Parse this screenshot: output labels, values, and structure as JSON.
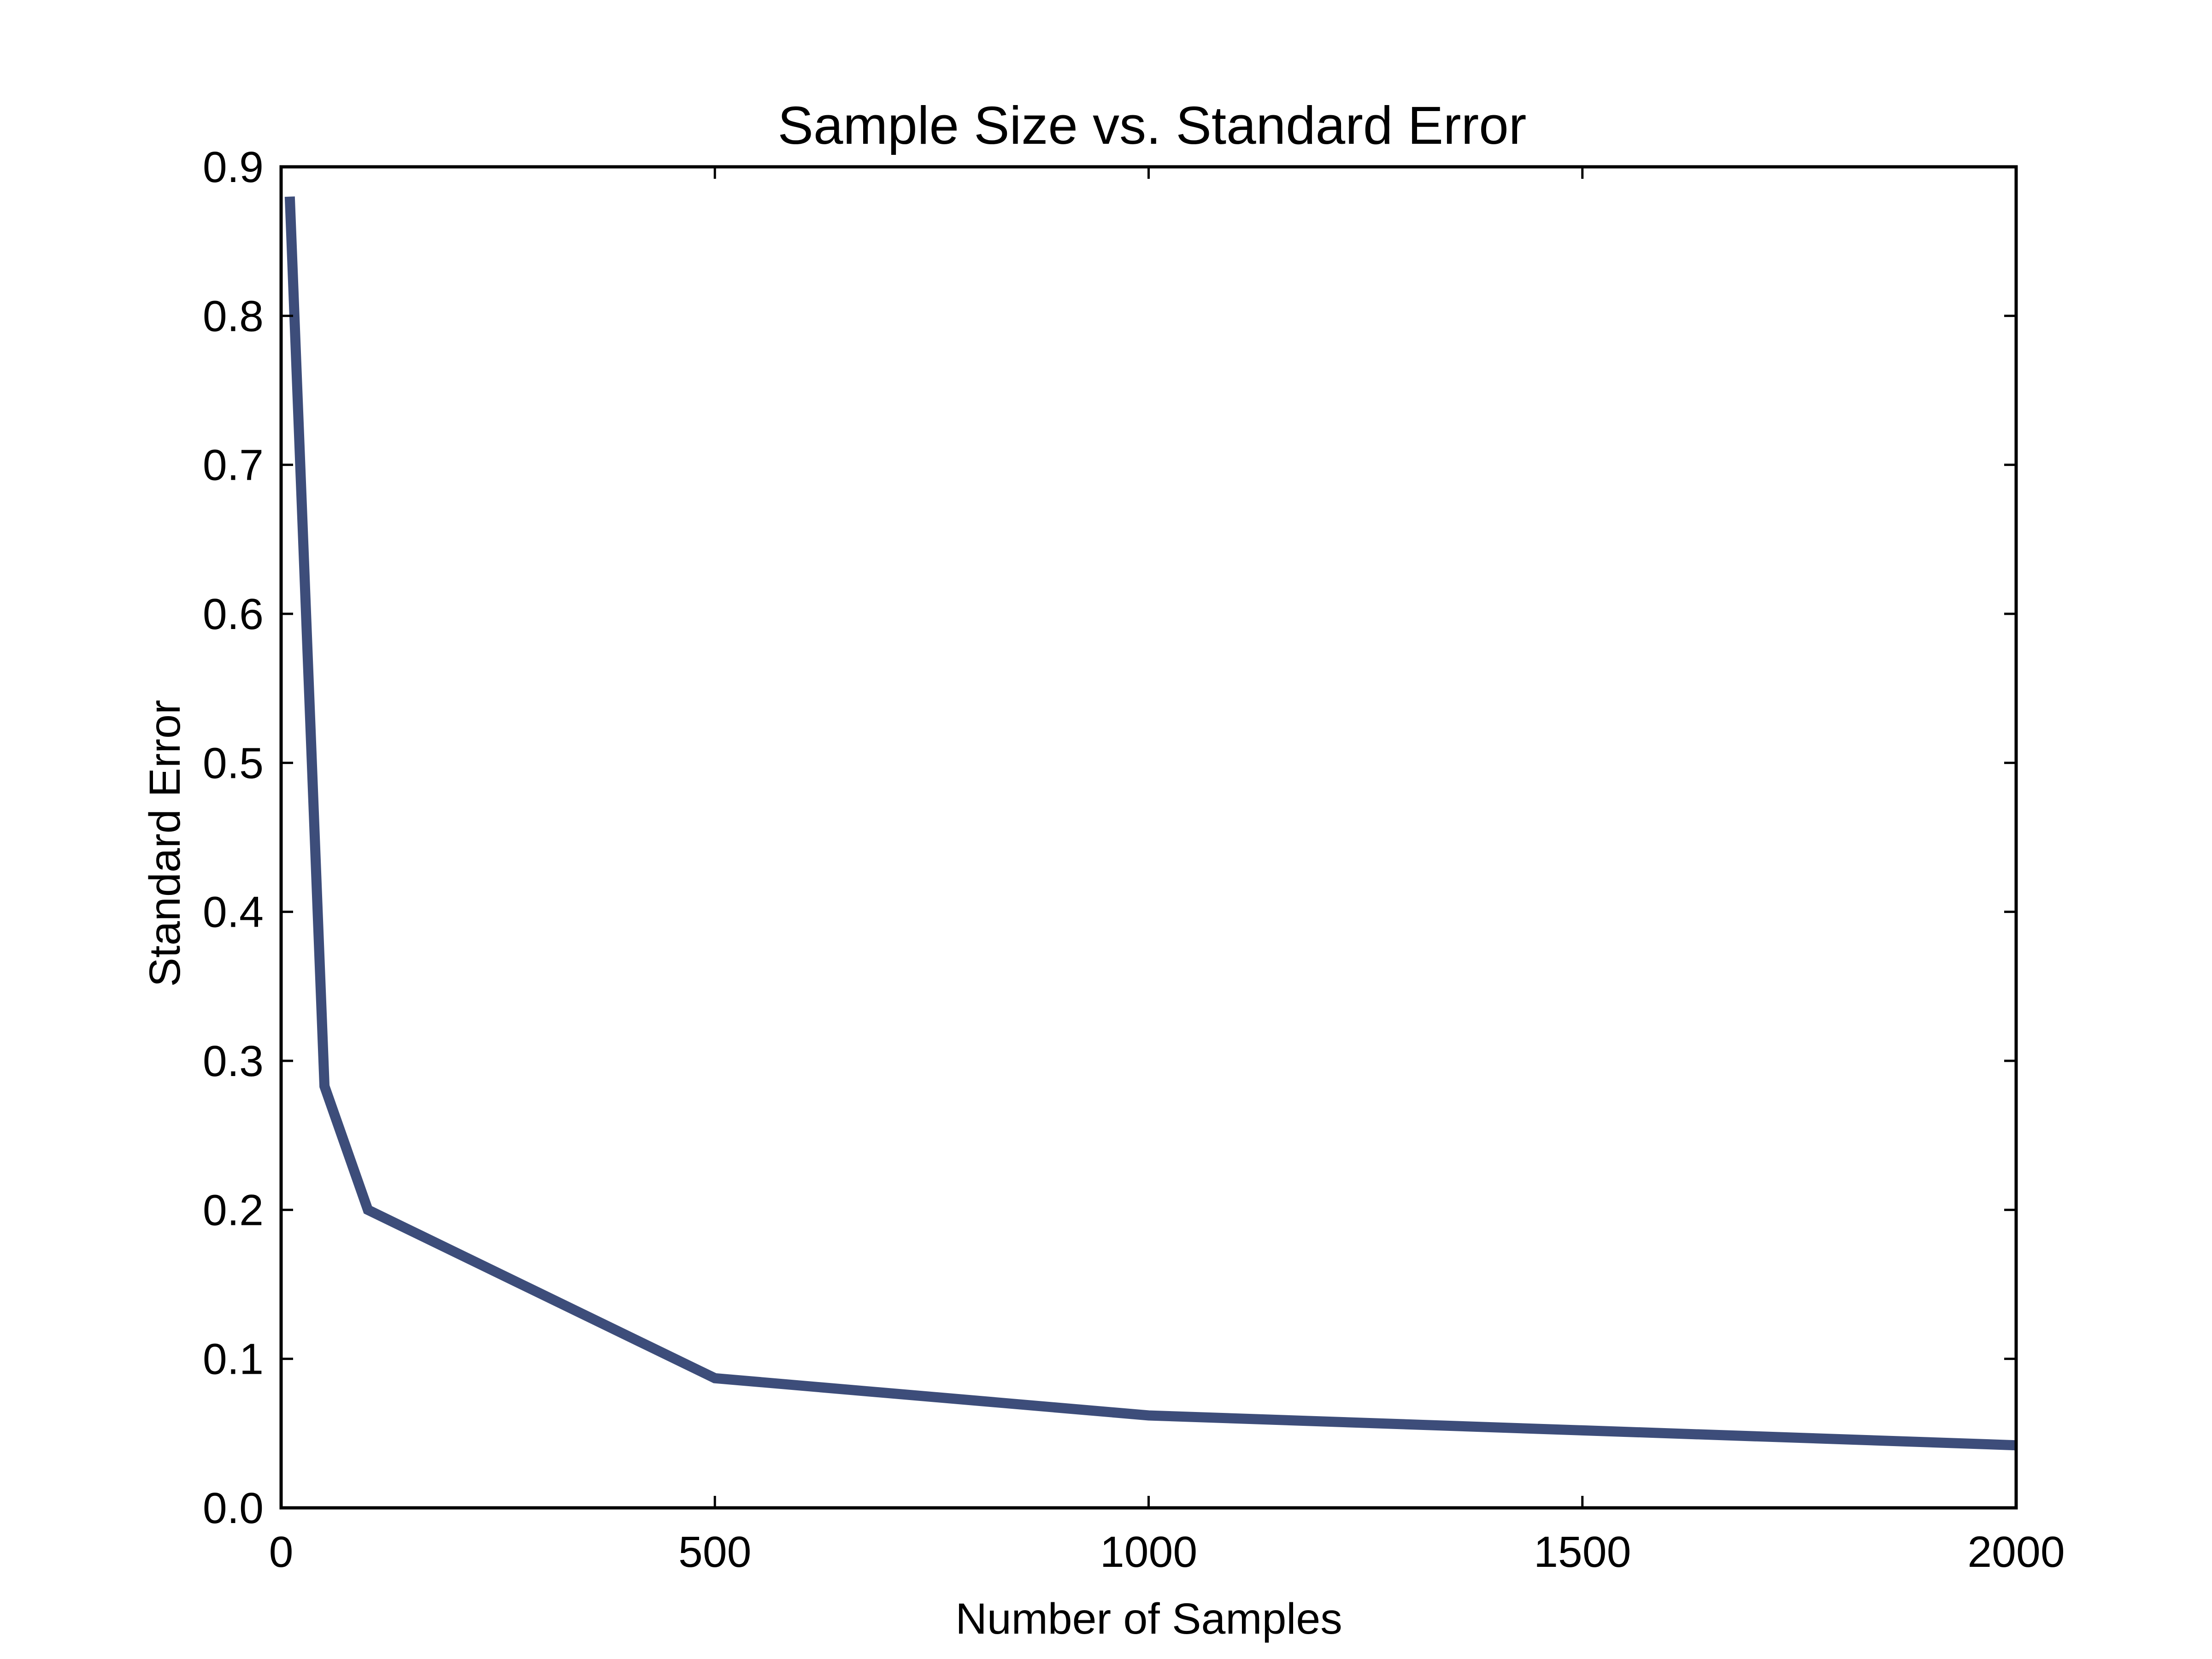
{
  "chart_data": {
    "type": "line",
    "title": "Sample Size vs. Standard Error",
    "xlabel": "Number of Samples",
    "ylabel": "Standard Error",
    "xlim": [
      0,
      2000
    ],
    "ylim": [
      0,
      0.9
    ],
    "x_ticks": [
      0,
      500,
      1000,
      1500,
      2000
    ],
    "x_tick_labels": [
      "0",
      "500",
      "1000",
      "1500",
      "2000"
    ],
    "y_ticks": [
      0.0,
      0.1,
      0.2,
      0.3,
      0.4,
      0.5,
      0.6,
      0.7,
      0.8,
      0.9
    ],
    "y_tick_labels": [
      "0.0",
      "0.1",
      "0.2",
      "0.3",
      "0.4",
      "0.5",
      "0.6",
      "0.7",
      "0.8",
      "0.9"
    ],
    "grid": false,
    "legend": "none",
    "series": [
      {
        "color": "#3d4d7a",
        "x": [
          10,
          50,
          100,
          500,
          1000,
          2000
        ],
        "y": [
          0.88,
          0.283,
          0.2,
          0.087,
          0.062,
          0.042
        ]
      }
    ]
  }
}
